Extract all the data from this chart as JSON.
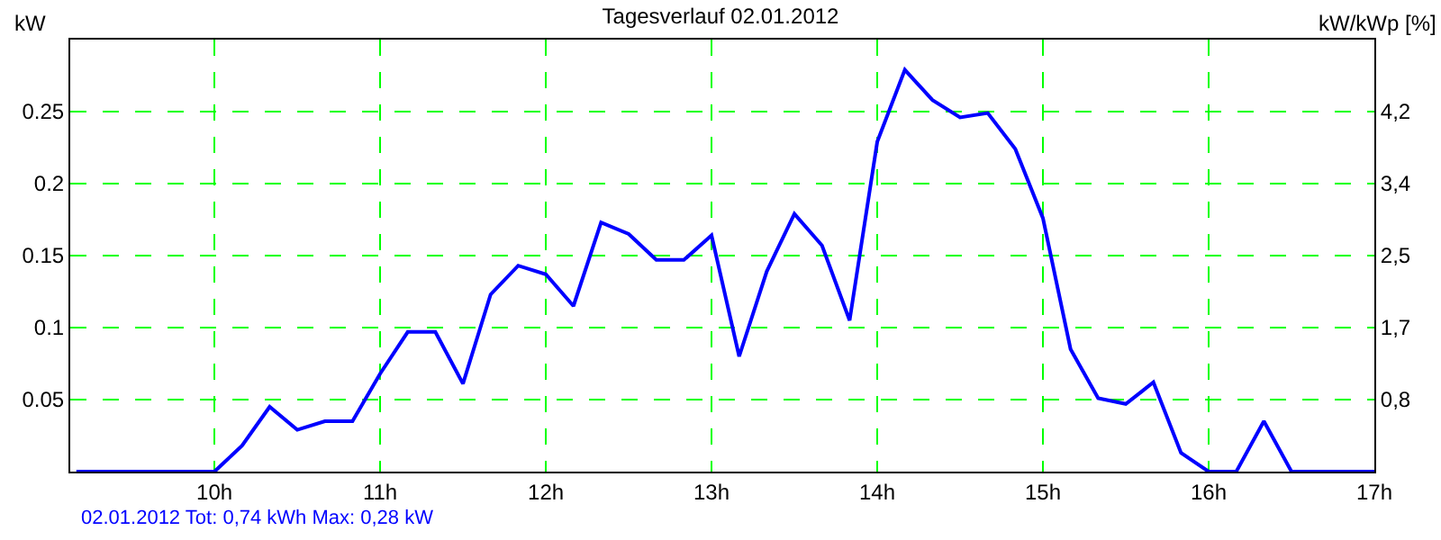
{
  "chart_data": {
    "type": "line",
    "title": "Tagesverlauf 02.01.2012",
    "ylabel": "kW",
    "y2label": "kW/kWp [%]",
    "x": [
      9.1667,
      9.3333,
      9.5,
      9.6667,
      9.8333,
      10,
      10.1667,
      10.3333,
      10.5,
      10.6667,
      10.8333,
      11,
      11.1667,
      11.3333,
      11.5,
      11.6667,
      11.8333,
      12,
      12.1667,
      12.3333,
      12.5,
      12.6667,
      12.8333,
      13,
      13.1667,
      13.3333,
      13.5,
      13.6667,
      13.8333,
      14,
      14.1667,
      14.3333,
      14.5,
      14.6667,
      14.8333,
      15,
      15.1667,
      15.3333,
      15.5,
      15.6667,
      15.8333,
      16,
      16.1667,
      16.3333,
      16.5,
      16.6667,
      16.8333,
      17
    ],
    "series": [
      {
        "color": "#0000ff",
        "values": [
          0,
          0,
          0,
          0,
          0,
          0,
          0.018,
          0.045,
          0.029,
          0.035,
          0.035,
          0.068,
          0.097,
          0.097,
          0.061,
          0.123,
          0.143,
          0.137,
          0.115,
          0.173,
          0.165,
          0.147,
          0.147,
          0.164,
          0.08,
          0.139,
          0.179,
          0.157,
          0.105,
          0.229,
          0.279,
          0.258,
          0.246,
          0.249,
          0.224,
          0.176,
          0.085,
          0.051,
          0.047,
          0.062,
          0.013,
          0,
          0,
          0.035,
          0,
          0,
          0,
          0
        ]
      }
    ],
    "xlim": [
      9.13,
      17
    ],
    "xticks": [
      {
        "value": 10,
        "label": "10h"
      },
      {
        "value": 11,
        "label": "11h"
      },
      {
        "value": 12,
        "label": "12h"
      },
      {
        "value": 13,
        "label": "13h"
      },
      {
        "value": 14,
        "label": "14h"
      },
      {
        "value": 15,
        "label": "15h"
      },
      {
        "value": 16,
        "label": "16h"
      },
      {
        "value": 17,
        "label": "17h"
      }
    ],
    "ylim": [
      0,
      0.3
    ],
    "yticks": [
      0.05,
      0.1,
      0.15,
      0.2,
      0.25
    ],
    "y2lim": [
      0,
      5.04
    ],
    "y2ticks": [
      {
        "value": 0.84,
        "label": "0,8"
      },
      {
        "value": 1.68,
        "label": "1,7"
      },
      {
        "value": 2.52,
        "label": "2,5"
      },
      {
        "value": 3.36,
        "label": "3,4"
      },
      {
        "value": 4.2,
        "label": "4,2"
      }
    ],
    "grid": true,
    "marker": "none",
    "line_style": "solid",
    "annotations": [
      "02.01.2012 Tot: 0,74 kWh Max: 0,28 kW"
    ]
  }
}
